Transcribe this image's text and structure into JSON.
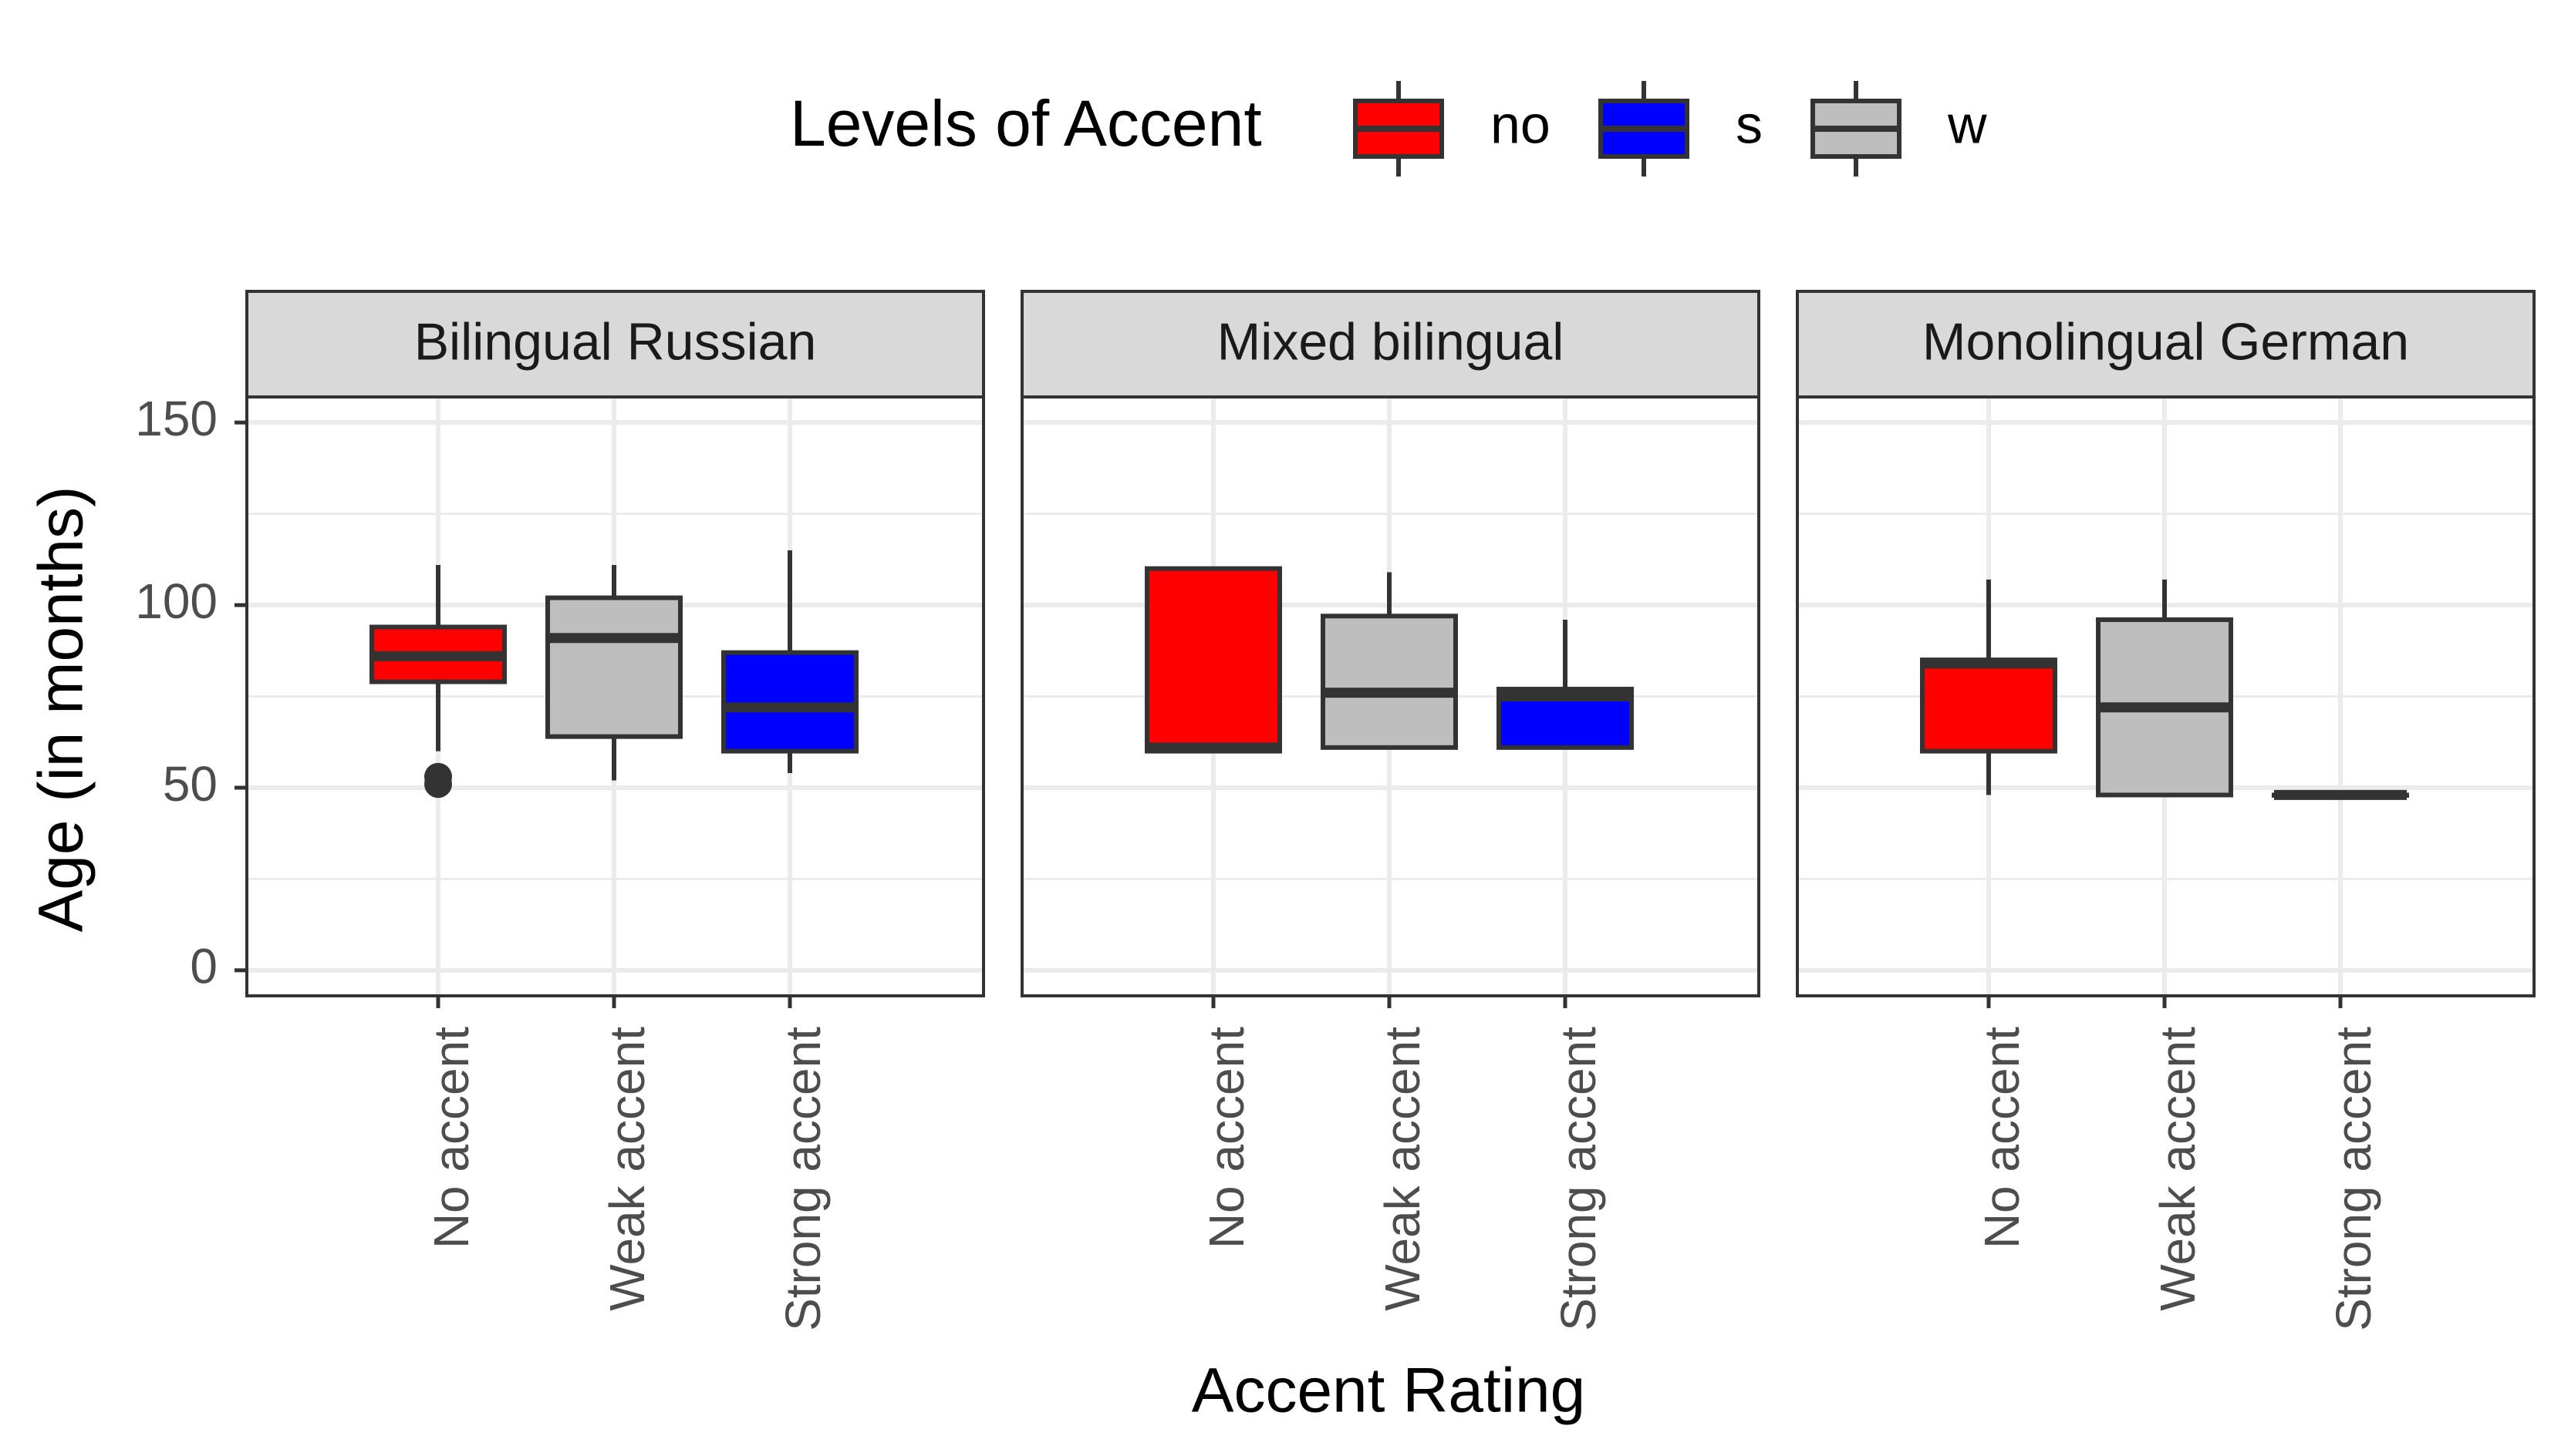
{
  "chart_data": {
    "type": "boxplot",
    "xlabel": "Accent Rating",
    "ylabel": "Age (in months)",
    "ylim": [
      -7,
      157
    ],
    "yticks": [
      0,
      50,
      100,
      150
    ],
    "categories": [
      "No accent",
      "Weak accent",
      "Strong accent"
    ],
    "legend": {
      "title": "Levels of Accent",
      "position": "top",
      "items": [
        {
          "key": "no",
          "label": "no",
          "color": "#FF0000"
        },
        {
          "key": "s",
          "label": "s",
          "color": "#0000FF"
        },
        {
          "key": "w",
          "label": "w",
          "color": "#BEBEBE"
        }
      ]
    },
    "grid": true,
    "panels": [
      {
        "title": "Bilingual Russian",
        "boxes": [
          {
            "category": "No accent",
            "level": "no",
            "whisker_low": 60,
            "q1": 79,
            "median": 86,
            "q3": 94,
            "whisker_high": 111,
            "outliers": [
              51,
              53
            ]
          },
          {
            "category": "Weak accent",
            "level": "w",
            "whisker_low": 52,
            "q1": 64,
            "median": 91,
            "q3": 102,
            "whisker_high": 111,
            "outliers": []
          },
          {
            "category": "Strong accent",
            "level": "s",
            "whisker_low": 54,
            "q1": 60,
            "median": 72,
            "q3": 87,
            "whisker_high": 115,
            "outliers": []
          }
        ]
      },
      {
        "title": "Mixed bilingual",
        "boxes": [
          {
            "category": "No accent",
            "level": "no",
            "whisker_low": 60,
            "q1": 60,
            "median": 61,
            "q3": 110,
            "whisker_high": 110,
            "outliers": []
          },
          {
            "category": "Weak accent",
            "level": "w",
            "whisker_low": 61,
            "q1": 61,
            "median": 76,
            "q3": 97,
            "whisker_high": 109,
            "outliers": []
          },
          {
            "category": "Strong accent",
            "level": "s",
            "whisker_low": 61,
            "q1": 61,
            "median": 75,
            "q3": 77,
            "whisker_high": 96,
            "outliers": []
          }
        ]
      },
      {
        "title": "Monolingual German",
        "boxes": [
          {
            "category": "No accent",
            "level": "no",
            "whisker_low": 48,
            "q1": 60,
            "median": 84,
            "q3": 85,
            "whisker_high": 107,
            "outliers": []
          },
          {
            "category": "Weak accent",
            "level": "w",
            "whisker_low": 48,
            "q1": 48,
            "median": 72,
            "q3": 96,
            "whisker_high": 107,
            "outliers": []
          },
          {
            "category": "Strong accent",
            "level": "s",
            "whisker_low": 48,
            "q1": 48,
            "median": 48,
            "q3": 48,
            "whisker_high": 48,
            "outliers": []
          }
        ]
      }
    ]
  }
}
